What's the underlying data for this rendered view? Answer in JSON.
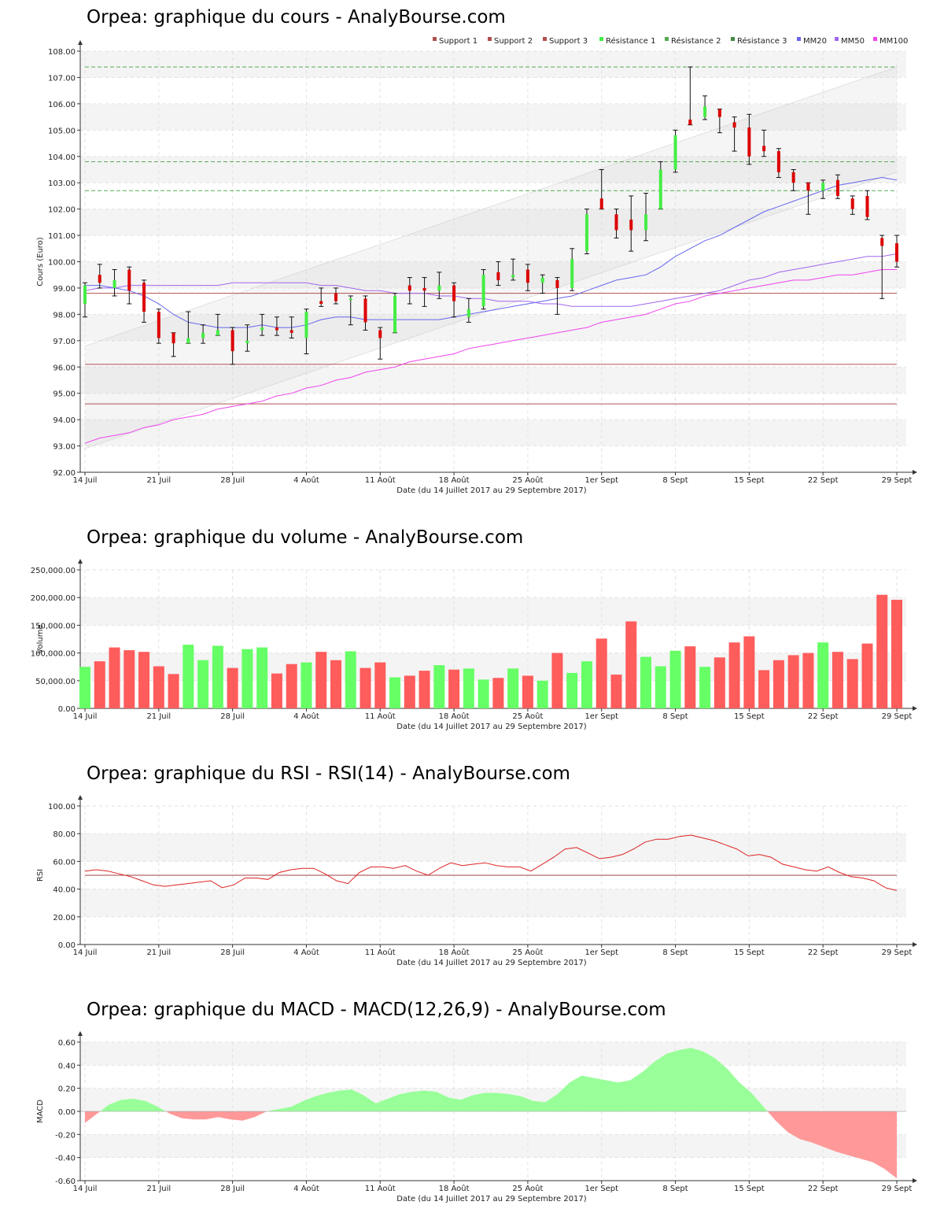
{
  "charts": {
    "price": {
      "title": "Orpea: graphique du cours - AnalyBourse.com",
      "ylabel": "Cours (Euro)",
      "xlabel": "Date (du 14 Juillet 2017 au 29 Septembre 2017)",
      "ylim": [
        92,
        108
      ],
      "yticks": [
        "92.00",
        "93.00",
        "94.00",
        "95.00",
        "96.00",
        "97.00",
        "98.00",
        "99.00",
        "100.00",
        "101.00",
        "102.00",
        "103.00",
        "104.00",
        "105.00",
        "106.00",
        "107.00",
        "108.00"
      ]
    },
    "volume": {
      "title": "Orpea: graphique du volume - AnalyBourse.com",
      "ylabel": "Volume",
      "xlabel": "Date (du 14 Juillet 2017 au 29 Septembre 2017)",
      "ylim": [
        0,
        250000
      ],
      "yticks": [
        "0.00",
        "50,000.00",
        "100,000.00",
        "150,000.00",
        "200,000.00",
        "250,000.00"
      ]
    },
    "rsi": {
      "title": "Orpea: graphique du RSI - RSI(14) - AnalyBourse.com",
      "ylabel": "RSI",
      "xlabel": "Date (du 14 Juillet 2017 au 29 Septembre 2017)",
      "ylim": [
        0,
        100
      ],
      "yticks": [
        "0.00",
        "20.00",
        "40.00",
        "60.00",
        "80.00",
        "100.00"
      ]
    },
    "macd": {
      "title": "Orpea: graphique du MACD - MACD(12,26,9) - AnalyBourse.com",
      "ylabel": "MACD",
      "xlabel": "Date (du 14 Juillet 2017 au 29 Septembre 2017)",
      "ylim": [
        -0.6,
        0.6
      ],
      "yticks": [
        "-0.60",
        "-0.40",
        "-0.20",
        "0.00",
        "0.20",
        "0.40",
        "0.60"
      ]
    }
  },
  "xticks": [
    "14 Juil",
    "21 Juil",
    "28 Juil",
    "4 Août",
    "11 Août",
    "18 Août",
    "25 Août",
    "1er Sept",
    "8 Sept",
    "15 Sept",
    "22 Sept",
    "29 Sept"
  ],
  "colors": {
    "up": "#44ee44",
    "down": "#dd0000",
    "vol_up": "#66ff66",
    "vol_down": "#ff5c5c",
    "support": "#b05050",
    "resistance": "#55aa55",
    "mm20": "#6666ee",
    "mm50": "#a066ee",
    "mm100": "#ee44ee",
    "rsi": "#dd2222",
    "macd_pos": "#99ff99",
    "macd_neg": "#ff9999"
  },
  "chart_data": [
    {
      "type": "candlestick",
      "legend": [
        "Support 1",
        "Support 2",
        "Support 3",
        "Résistance 1",
        "Résistance 2",
        "Résistance 3",
        "MM20",
        "MM50",
        "MM100"
      ],
      "legend_placement": "top-right",
      "grid": true,
      "candles": [
        {
          "d": "14 Juil",
          "o": 98.4,
          "c": 99.1,
          "h": 99.2,
          "l": 97.9
        },
        {
          "d": "17 Juil",
          "o": 99.5,
          "c": 99.2,
          "h": 99.9,
          "l": 99.0
        },
        {
          "d": "18 Juil",
          "o": 99.0,
          "c": 99.3,
          "h": 99.7,
          "l": 98.7
        },
        {
          "d": "19 Juil",
          "o": 99.7,
          "c": 98.9,
          "h": 99.8,
          "l": 98.4
        },
        {
          "d": "20 Juil",
          "o": 99.2,
          "c": 98.1,
          "h": 99.3,
          "l": 97.7
        },
        {
          "d": "21 Juil",
          "o": 98.1,
          "c": 97.1,
          "h": 98.2,
          "l": 96.9
        },
        {
          "d": "24 Juil",
          "o": 97.3,
          "c": 96.9,
          "h": 97.3,
          "l": 96.4
        },
        {
          "d": "25 Juil",
          "o": 96.9,
          "c": 97.1,
          "h": 98.1,
          "l": 96.9
        },
        {
          "d": "26 Juil",
          "o": 97.1,
          "c": 97.3,
          "h": 97.6,
          "l": 96.9
        },
        {
          "d": "27 Juil",
          "o": 97.2,
          "c": 97.4,
          "h": 98.0,
          "l": 97.2
        },
        {
          "d": "28 Juil",
          "o": 97.4,
          "c": 96.6,
          "h": 97.5,
          "l": 96.1
        },
        {
          "d": "31 Juil",
          "o": 96.9,
          "c": 97.0,
          "h": 97.6,
          "l": 96.6
        },
        {
          "d": "1 Août",
          "o": 97.4,
          "c": 97.5,
          "h": 98.0,
          "l": 97.2
        },
        {
          "d": "2 Août",
          "o": 97.5,
          "c": 97.4,
          "h": 97.9,
          "l": 97.2
        },
        {
          "d": "3 Août",
          "o": 97.4,
          "c": 97.3,
          "h": 97.9,
          "l": 97.1
        },
        {
          "d": "4 Août",
          "o": 97.1,
          "c": 98.1,
          "h": 98.2,
          "l": 96.5
        },
        {
          "d": "7 Août",
          "o": 98.5,
          "c": 98.4,
          "h": 99.0,
          "l": 98.3
        },
        {
          "d": "8 Août",
          "o": 98.8,
          "c": 98.5,
          "h": 99.0,
          "l": 98.4
        },
        {
          "d": "9 Août",
          "o": 98.6,
          "c": 98.6,
          "h": 98.7,
          "l": 97.6
        },
        {
          "d": "10 Août",
          "o": 98.6,
          "c": 97.7,
          "h": 98.7,
          "l": 97.4
        },
        {
          "d": "11 Août",
          "o": 97.4,
          "c": 97.1,
          "h": 97.5,
          "l": 96.3
        },
        {
          "d": "14 Août",
          "o": 97.3,
          "c": 98.7,
          "h": 98.8,
          "l": 97.3
        },
        {
          "d": "15 Août",
          "o": 99.1,
          "c": 98.9,
          "h": 99.4,
          "l": 98.4
        },
        {
          "d": "16 Août",
          "o": 99.0,
          "c": 98.9,
          "h": 99.4,
          "l": 98.3
        },
        {
          "d": "17 Août",
          "o": 98.9,
          "c": 99.1,
          "h": 99.6,
          "l": 98.6
        },
        {
          "d": "18 Août",
          "o": 99.1,
          "c": 98.5,
          "h": 99.2,
          "l": 97.9
        },
        {
          "d": "21 Août",
          "o": 97.9,
          "c": 98.2,
          "h": 98.6,
          "l": 97.7
        },
        {
          "d": "22 Août",
          "o": 98.3,
          "c": 99.5,
          "h": 99.7,
          "l": 98.2
        },
        {
          "d": "23 Août",
          "o": 99.6,
          "c": 99.3,
          "h": 100.0,
          "l": 99.1
        },
        {
          "d": "24 Août",
          "o": 99.4,
          "c": 99.5,
          "h": 100.1,
          "l": 99.3
        },
        {
          "d": "25 Août",
          "o": 99.7,
          "c": 99.2,
          "h": 99.9,
          "l": 98.9
        },
        {
          "d": "28 Août",
          "o": 99.2,
          "c": 99.4,
          "h": 99.5,
          "l": 98.8
        },
        {
          "d": "29 Août",
          "o": 99.3,
          "c": 99.0,
          "h": 99.4,
          "l": 98.0
        },
        {
          "d": "30 Août",
          "o": 99.0,
          "c": 100.1,
          "h": 100.5,
          "l": 98.9
        },
        {
          "d": "31 Août",
          "o": 100.4,
          "c": 101.8,
          "h": 102.0,
          "l": 100.3
        },
        {
          "d": "1er Sept",
          "o": 102.4,
          "c": 102.0,
          "h": 103.5,
          "l": 102.0
        },
        {
          "d": "4 Sept",
          "o": 101.8,
          "c": 101.2,
          "h": 102.0,
          "l": 100.9
        },
        {
          "d": "5 Sept",
          "o": 101.6,
          "c": 101.2,
          "h": 102.5,
          "l": 100.4
        },
        {
          "d": "6 Sept",
          "o": 101.2,
          "c": 101.8,
          "h": 102.6,
          "l": 100.8
        },
        {
          "d": "7 Sept",
          "o": 102.0,
          "c": 103.5,
          "h": 103.8,
          "l": 102.0
        },
        {
          "d": "8 Sept",
          "o": 103.5,
          "c": 104.8,
          "h": 105.0,
          "l": 103.4
        },
        {
          "d": "11 Sept",
          "o": 105.4,
          "c": 105.2,
          "h": 107.4,
          "l": 105.2
        },
        {
          "d": "12 Sept",
          "o": 105.5,
          "c": 105.9,
          "h": 106.3,
          "l": 105.4
        },
        {
          "d": "13 Sept",
          "o": 105.8,
          "c": 105.5,
          "h": 105.8,
          "l": 104.9
        },
        {
          "d": "14 Sept",
          "o": 105.3,
          "c": 105.1,
          "h": 105.5,
          "l": 104.2
        },
        {
          "d": "15 Sept",
          "o": 105.1,
          "c": 104.0,
          "h": 105.6,
          "l": 103.7
        },
        {
          "d": "18 Sept",
          "o": 104.4,
          "c": 104.2,
          "h": 105.0,
          "l": 104.0
        },
        {
          "d": "19 Sept",
          "o": 104.2,
          "c": 103.4,
          "h": 104.3,
          "l": 103.2
        },
        {
          "d": "20 Sept",
          "o": 103.4,
          "c": 103.0,
          "h": 103.5,
          "l": 102.7
        },
        {
          "d": "21 Sept",
          "o": 103.0,
          "c": 102.7,
          "h": 103.0,
          "l": 101.8
        },
        {
          "d": "22 Sept",
          "o": 102.7,
          "c": 103.0,
          "h": 103.1,
          "l": 102.4
        },
        {
          "d": "25 Sept",
          "o": 103.1,
          "c": 102.5,
          "h": 103.3,
          "l": 102.4
        },
        {
          "d": "26 Sept",
          "o": 102.4,
          "c": 102.0,
          "h": 102.5,
          "l": 101.8
        },
        {
          "d": "27 Sept",
          "o": 102.5,
          "c": 101.7,
          "h": 102.7,
          "l": 101.6
        },
        {
          "d": "28 Sept",
          "o": 100.9,
          "c": 100.6,
          "h": 101.0,
          "l": 98.6
        },
        {
          "d": "29 Sept",
          "o": 100.7,
          "c": 100.0,
          "h": 101.0,
          "l": 99.8
        }
      ],
      "supports": [
        98.8,
        96.1,
        94.6
      ],
      "resistances": [
        102.7,
        103.8,
        107.4
      ],
      "channel_upper": [
        96.8,
        107.4
      ],
      "channel_lower": [
        92.9,
        103.4
      ],
      "mm20": [
        99.1,
        99.1,
        99.0,
        98.9,
        98.7,
        98.4,
        98.0,
        97.7,
        97.6,
        97.5,
        97.5,
        97.5,
        97.6,
        97.5,
        97.5,
        97.6,
        97.8,
        97.9,
        97.9,
        97.8,
        97.8,
        97.8,
        97.8,
        97.8,
        97.8,
        97.9,
        98.0,
        98.1,
        98.2,
        98.3,
        98.4,
        98.5,
        98.6,
        98.7,
        98.9,
        99.1,
        99.3,
        99.4,
        99.5,
        99.8,
        100.2,
        100.5,
        100.8,
        101.0,
        101.3,
        101.6,
        101.9,
        102.1,
        102.3,
        102.5,
        102.7,
        102.9,
        103.0,
        103.1,
        103.2,
        103.1
      ],
      "mm50": [
        98.9,
        99.0,
        99.0,
        99.1,
        99.1,
        99.1,
        99.1,
        99.1,
        99.1,
        99.1,
        99.2,
        99.2,
        99.2,
        99.2,
        99.2,
        99.2,
        99.1,
        99.1,
        99.0,
        98.9,
        98.9,
        98.8,
        98.8,
        98.8,
        98.7,
        98.7,
        98.6,
        98.6,
        98.5,
        98.5,
        98.5,
        98.4,
        98.4,
        98.3,
        98.3,
        98.3,
        98.3,
        98.3,
        98.4,
        98.5,
        98.6,
        98.7,
        98.8,
        98.9,
        99.1,
        99.3,
        99.4,
        99.6,
        99.7,
        99.8,
        99.9,
        100.0,
        100.1,
        100.2,
        100.2,
        100.3
      ],
      "mm100": [
        93.1,
        93.3,
        93.4,
        93.5,
        93.7,
        93.8,
        94.0,
        94.1,
        94.2,
        94.4,
        94.5,
        94.6,
        94.7,
        94.9,
        95.0,
        95.2,
        95.3,
        95.5,
        95.6,
        95.8,
        95.9,
        96.0,
        96.2,
        96.3,
        96.4,
        96.5,
        96.7,
        96.8,
        96.9,
        97.0,
        97.1,
        97.2,
        97.3,
        97.4,
        97.5,
        97.7,
        97.8,
        97.9,
        98.0,
        98.2,
        98.4,
        98.5,
        98.7,
        98.8,
        98.9,
        99.0,
        99.1,
        99.2,
        99.3,
        99.3,
        99.4,
        99.5,
        99.5,
        99.6,
        99.7,
        99.7
      ]
    },
    {
      "type": "bar",
      "values": [
        75000,
        85000,
        110000,
        105000,
        102000,
        76000,
        62000,
        115000,
        87000,
        113000,
        73000,
        107000,
        110000,
        63000,
        80000,
        83000,
        102000,
        87000,
        103000,
        73000,
        83000,
        56000,
        59000,
        68000,
        78000,
        70000,
        72000,
        52000,
        55000,
        72000,
        59000,
        50000,
        100000,
        64000,
        85000,
        126000,
        61000,
        157000,
        93000,
        76000,
        104000,
        112000,
        75000,
        92000,
        119000,
        130000,
        69000,
        87000,
        96000,
        100000,
        119000,
        102000,
        89000,
        117000,
        205000,
        196000
      ],
      "colors_up_down": [
        "u",
        "d",
        "d",
        "d",
        "d",
        "d",
        "d",
        "u",
        "u",
        "u",
        "d",
        "u",
        "u",
        "d",
        "d",
        "u",
        "d",
        "d",
        "u",
        "d",
        "d",
        "u",
        "d",
        "d",
        "u",
        "d",
        "u",
        "u",
        "d",
        "u",
        "d",
        "u",
        "d",
        "u",
        "u",
        "d",
        "d",
        "d",
        "u",
        "u",
        "u",
        "d",
        "u",
        "d",
        "d",
        "d",
        "d",
        "d",
        "d",
        "d",
        "u",
        "d",
        "d",
        "d",
        "d",
        "d"
      ],
      "grid": true
    },
    {
      "type": "line",
      "reference_line": 50,
      "values": [
        53,
        54,
        53,
        51,
        49,
        46,
        43,
        42,
        43,
        44,
        45,
        46,
        41,
        43,
        48,
        48,
        47,
        52,
        54,
        55,
        55,
        51,
        46,
        44,
        52,
        56,
        56,
        55,
        57,
        53,
        50,
        55,
        59,
        57,
        58,
        59,
        57,
        56,
        56,
        53,
        58,
        63,
        69,
        70,
        66,
        62,
        63,
        65,
        69,
        74,
        76,
        76,
        78,
        79,
        77,
        75,
        72,
        69,
        64,
        65,
        63,
        58,
        56,
        54,
        53,
        56,
        52,
        49,
        48,
        46,
        41,
        39
      ],
      "grid": true
    },
    {
      "type": "area",
      "values": [
        -0.1,
        -0.02,
        0.06,
        0.1,
        0.11,
        0.09,
        0.04,
        -0.02,
        -0.06,
        -0.07,
        -0.07,
        -0.05,
        -0.07,
        -0.08,
        -0.05,
        0.0,
        0.02,
        0.04,
        0.09,
        0.13,
        0.16,
        0.18,
        0.19,
        0.14,
        0.07,
        0.11,
        0.15,
        0.17,
        0.18,
        0.17,
        0.12,
        0.1,
        0.14,
        0.16,
        0.16,
        0.15,
        0.13,
        0.09,
        0.08,
        0.15,
        0.25,
        0.31,
        0.29,
        0.27,
        0.25,
        0.27,
        0.34,
        0.43,
        0.5,
        0.53,
        0.55,
        0.52,
        0.46,
        0.37,
        0.25,
        0.16,
        0.04,
        -0.08,
        -0.18,
        -0.24,
        -0.27,
        -0.31,
        -0.35,
        -0.38,
        -0.41,
        -0.44,
        -0.5,
        -0.58
      ],
      "grid": true
    }
  ]
}
